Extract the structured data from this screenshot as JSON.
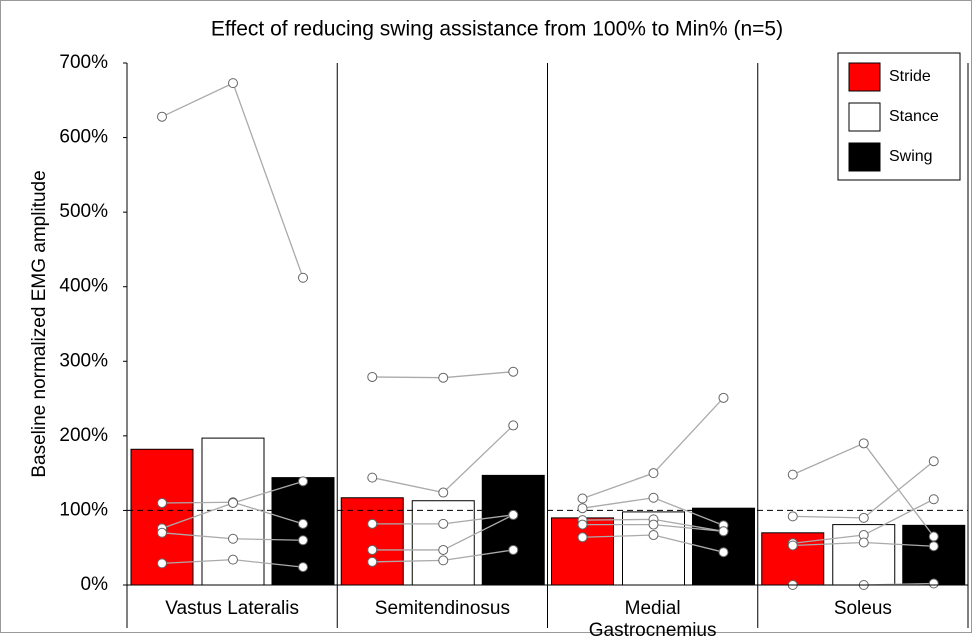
{
  "chart_data": {
    "type": "bar",
    "title": "Effect of reducing swing assistance from 100% to Min% (n=5)",
    "y_label": "Baseline normalized EMG amplitude",
    "categories": [
      "Vastus Lateralis",
      "Semitendinosus",
      "Medial Gastrocnemius",
      "Soleus"
    ],
    "series": [
      {
        "name": "Stride",
        "color": "#ff0000",
        "values": [
          182,
          117,
          90,
          70
        ]
      },
      {
        "name": "Stance",
        "color": "#ffffff",
        "values": [
          197,
          113,
          98,
          81
        ]
      },
      {
        "name": "Swing",
        "color": "#000000",
        "values": [
          144,
          147,
          103,
          80
        ]
      }
    ],
    "individuals": [
      [
        [
          628,
          673,
          412
        ],
        [
          110,
          111,
          82
        ],
        [
          76,
          110,
          139
        ],
        [
          70,
          62,
          60
        ],
        [
          29,
          34,
          24
        ]
      ],
      [
        [
          279,
          278,
          286
        ],
        [
          144,
          124,
          214
        ],
        [
          82,
          82,
          94
        ],
        [
          47,
          47,
          94
        ],
        [
          31,
          33,
          47
        ]
      ],
      [
        [
          116,
          150,
          251
        ],
        [
          103,
          117,
          80
        ],
        [
          87,
          88,
          72
        ],
        [
          81,
          81,
          72
        ],
        [
          64,
          67,
          44
        ]
      ],
      [
        [
          148,
          190,
          65
        ],
        [
          92,
          90,
          166
        ],
        [
          56,
          67,
          115
        ],
        [
          53,
          57,
          52
        ],
        [
          0,
          0,
          2
        ]
      ]
    ],
    "reference_line": 100,
    "ylim": [
      0,
      700
    ],
    "yticks": [
      {
        "value": 0,
        "label": "0%"
      },
      {
        "value": 100,
        "label": "100%"
      },
      {
        "value": 200,
        "label": "200%"
      },
      {
        "value": 300,
        "label": "300%"
      },
      {
        "value": 400,
        "label": "400%"
      },
      {
        "value": 500,
        "label": "500%"
      },
      {
        "value": 600,
        "label": "600%"
      },
      {
        "value": 700,
        "label": "700%"
      }
    ],
    "legend": "top-right"
  }
}
